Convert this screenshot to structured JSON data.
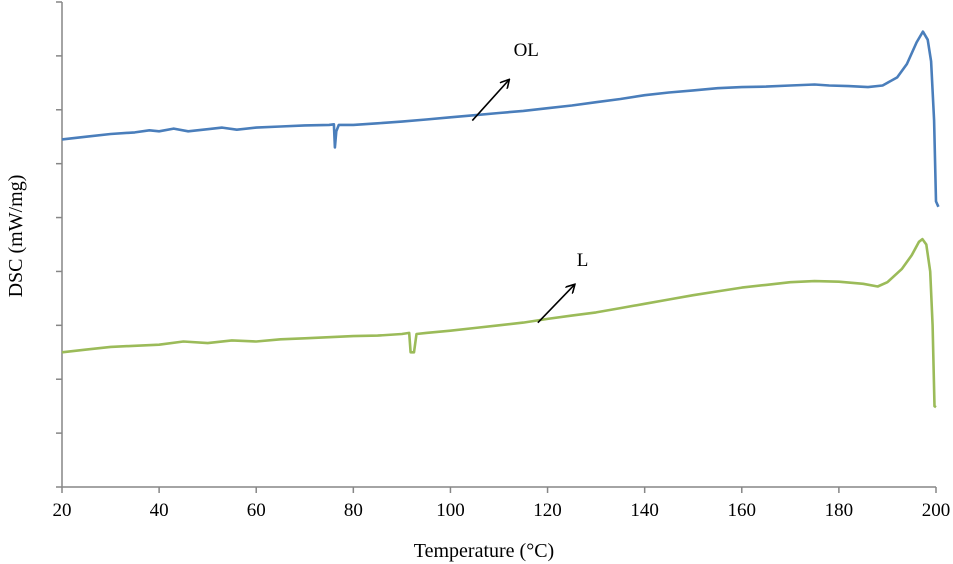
{
  "chart_data": {
    "type": "line",
    "title": "",
    "xlabel": "Temperature (°C)",
    "ylabel": "DSC (mW/mg)",
    "xlim": [
      20,
      200
    ],
    "ylim": [
      0,
      9
    ],
    "x_ticks": [
      "20",
      "40",
      "60",
      "80",
      "100",
      "120",
      "140",
      "160",
      "180",
      "200"
    ],
    "y_tick_count": 9,
    "grid": false,
    "legend": "none",
    "series": [
      {
        "name": "OL",
        "color": "#4A7EBB",
        "points": [
          [
            20,
            6.45
          ],
          [
            25,
            6.5
          ],
          [
            30,
            6.55
          ],
          [
            35,
            6.58
          ],
          [
            38,
            6.62
          ],
          [
            40,
            6.6
          ],
          [
            43,
            6.65
          ],
          [
            46,
            6.6
          ],
          [
            50,
            6.64
          ],
          [
            53,
            6.67
          ],
          [
            56,
            6.63
          ],
          [
            60,
            6.67
          ],
          [
            65,
            6.69
          ],
          [
            70,
            6.71
          ],
          [
            75,
            6.72
          ],
          [
            76,
            6.73
          ],
          [
            76.2,
            6.3
          ],
          [
            76.5,
            6.6
          ],
          [
            77,
            6.72
          ],
          [
            80,
            6.72
          ],
          [
            85,
            6.75
          ],
          [
            90,
            6.78
          ],
          [
            95,
            6.82
          ],
          [
            100,
            6.86
          ],
          [
            105,
            6.9
          ],
          [
            110,
            6.94
          ],
          [
            115,
            6.98
          ],
          [
            120,
            7.03
          ],
          [
            125,
            7.08
          ],
          [
            130,
            7.14
          ],
          [
            135,
            7.2
          ],
          [
            140,
            7.27
          ],
          [
            145,
            7.32
          ],
          [
            150,
            7.36
          ],
          [
            155,
            7.4
          ],
          [
            160,
            7.42
          ],
          [
            165,
            7.43
          ],
          [
            170,
            7.45
          ],
          [
            175,
            7.47
          ],
          [
            178,
            7.45
          ],
          [
            182,
            7.44
          ],
          [
            186,
            7.42
          ],
          [
            189,
            7.45
          ],
          [
            192,
            7.6
          ],
          [
            194,
            7.85
          ],
          [
            196,
            8.25
          ],
          [
            197.3,
            8.45
          ],
          [
            198.3,
            8.3
          ],
          [
            199,
            7.9
          ],
          [
            199.6,
            6.8
          ],
          [
            200,
            5.3
          ],
          [
            200.5,
            5.2
          ]
        ]
      },
      {
        "name": "L",
        "color": "#9BBB59",
        "points": [
          [
            20,
            2.5
          ],
          [
            25,
            2.55
          ],
          [
            30,
            2.6
          ],
          [
            35,
            2.62
          ],
          [
            40,
            2.64
          ],
          [
            45,
            2.7
          ],
          [
            50,
            2.67
          ],
          [
            55,
            2.72
          ],
          [
            60,
            2.7
          ],
          [
            65,
            2.74
          ],
          [
            70,
            2.76
          ],
          [
            75,
            2.78
          ],
          [
            80,
            2.8
          ],
          [
            85,
            2.81
          ],
          [
            90,
            2.84
          ],
          [
            91.5,
            2.86
          ],
          [
            91.8,
            2.5
          ],
          [
            92.5,
            2.5
          ],
          [
            93,
            2.84
          ],
          [
            95,
            2.86
          ],
          [
            100,
            2.9
          ],
          [
            105,
            2.95
          ],
          [
            110,
            3.0
          ],
          [
            115,
            3.05
          ],
          [
            120,
            3.12
          ],
          [
            125,
            3.18
          ],
          [
            130,
            3.24
          ],
          [
            135,
            3.32
          ],
          [
            140,
            3.4
          ],
          [
            145,
            3.48
          ],
          [
            150,
            3.56
          ],
          [
            155,
            3.63
          ],
          [
            160,
            3.7
          ],
          [
            165,
            3.75
          ],
          [
            170,
            3.8
          ],
          [
            175,
            3.82
          ],
          [
            180,
            3.81
          ],
          [
            185,
            3.77
          ],
          [
            188,
            3.72
          ],
          [
            190,
            3.8
          ],
          [
            193,
            4.05
          ],
          [
            195,
            4.3
          ],
          [
            196.5,
            4.55
          ],
          [
            197.2,
            4.6
          ],
          [
            198,
            4.5
          ],
          [
            198.8,
            4.0
          ],
          [
            199.3,
            3.0
          ],
          [
            199.7,
            1.5
          ],
          [
            200,
            1.48
          ]
        ]
      }
    ],
    "annotations": [
      {
        "text": "OL",
        "x": 113,
        "y": 8.0,
        "arrow_from": [
          104.5,
          6.8
        ],
        "arrow_to": [
          112,
          7.55
        ]
      },
      {
        "text": "L",
        "x": 126,
        "y": 4.1,
        "arrow_from": [
          118,
          3.05
        ],
        "arrow_to": [
          125.5,
          3.75
        ]
      }
    ]
  }
}
